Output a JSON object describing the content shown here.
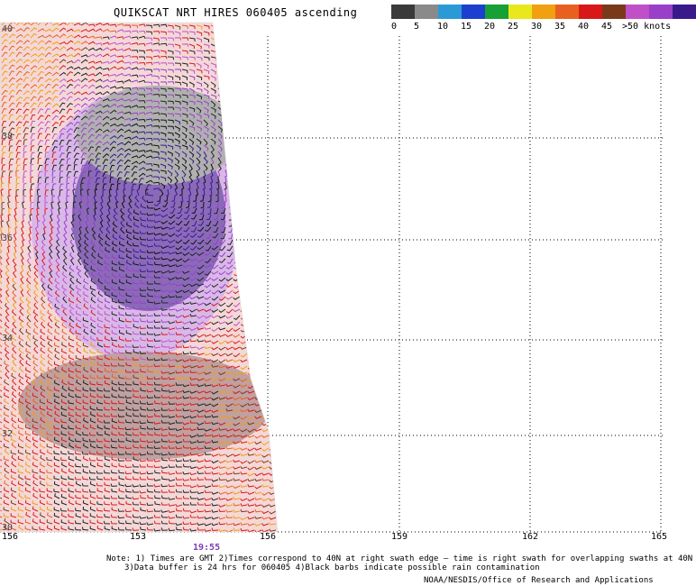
{
  "title": "QUIKSCAT NRT HIRES 060405 ascending",
  "colorbar": {
    "colors": [
      "#3a3a3a",
      "#8a8a8a",
      "#2a9ad6",
      "#1d3fd0",
      "#16a035",
      "#e8e81c",
      "#f0a010",
      "#e86020",
      "#d81818",
      "#7a3a1a",
      "#c050c8",
      "#9a3fc8",
      "#3a1a8a"
    ],
    "labels": [
      "0",
      "5",
      "10",
      "15",
      "20",
      "25",
      "30",
      "35",
      "40",
      "45",
      ">50 knots"
    ]
  },
  "x_axis": {
    "ticks": [
      "156",
      "153",
      "156",
      "159",
      "162",
      "165"
    ]
  },
  "y_axis": {
    "ticks": [
      "40",
      "38",
      "36",
      "34",
      "32",
      "30"
    ]
  },
  "time_label": "19:55",
  "note_lines": [
    "Note: 1) Times are GMT 2)Times correspond to 40N at right swath edge — time is right swath for overlapping swaths at 40N",
    "3)Data buffer is 24 hrs for 060405 4)Black barbs indicate possible rain contamination"
  ],
  "credit": "NOAA/NESDIS/Office of Research and Applications"
}
